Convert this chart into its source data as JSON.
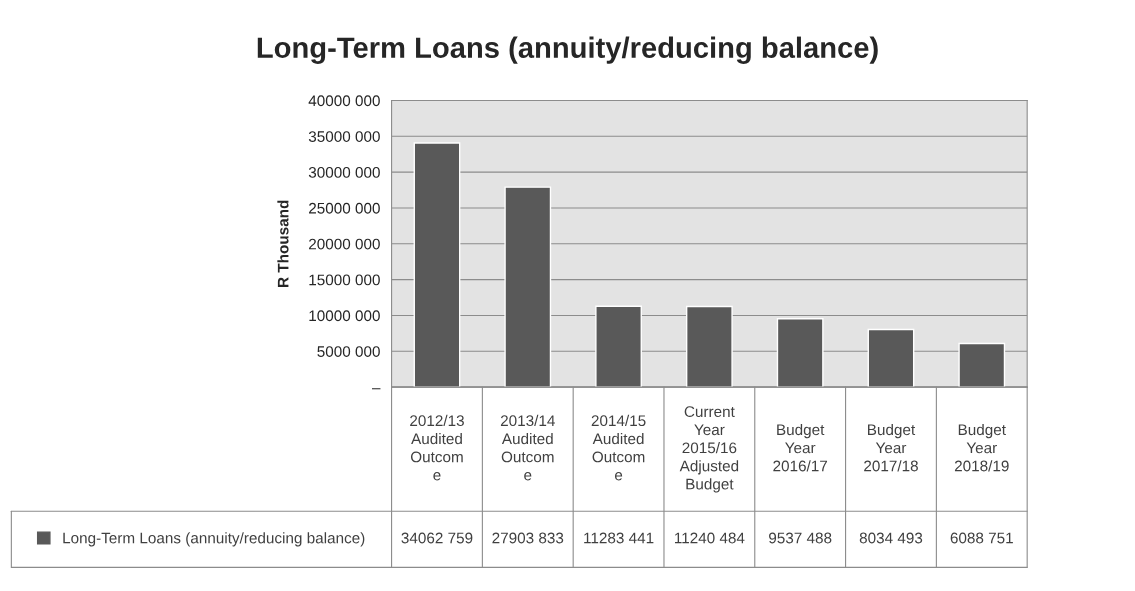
{
  "chart_data": {
    "type": "bar",
    "title": "Long-Term Loans (annuity/reducing balance)",
    "ylabel": "R Thousand",
    "categories": [
      "2012/13\nAudited\nOutcom\ne",
      "2013/14\nAudited\nOutcom\ne",
      "2014/15\nAudited\nOutcom\ne",
      "Current\nYear\n2015/16\nAdjusted\nBudget",
      "Budget\nYear\n2016/17",
      "Budget\nYear\n2017/18",
      "Budget\nYear\n2018/19"
    ],
    "series": [
      {
        "name": "Long-Term Loans (annuity/reducing balance)",
        "color": "#595959",
        "values": [
          34062759,
          27903833,
          11283441,
          11240484,
          9537488,
          8034493,
          6088751
        ],
        "value_labels": [
          "34062 759",
          "27903 833",
          "11283 441",
          "11240 484",
          "9537 488",
          "8034 493",
          "6088 751"
        ]
      }
    ],
    "ylim": [
      0,
      40000000
    ],
    "yticks": [
      {
        "value": 0,
        "label": "–"
      },
      {
        "value": 5000000,
        "label": "5000 000"
      },
      {
        "value": 10000000,
        "label": "10000 000"
      },
      {
        "value": 15000000,
        "label": "15000 000"
      },
      {
        "value": 20000000,
        "label": "20000 000"
      },
      {
        "value": 25000000,
        "label": "25000 000"
      },
      {
        "value": 30000000,
        "label": "30000 000"
      },
      {
        "value": 35000000,
        "label": "35000 000"
      },
      {
        "value": 40000000,
        "label": "40000 000"
      }
    ],
    "grid": "y",
    "legend": "bottom"
  }
}
